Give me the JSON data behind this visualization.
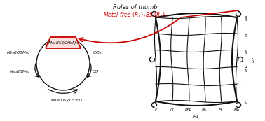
{
  "title": "Rules of thumb",
  "subtitle": "Metal-free $(R_1)_2BSi(R_2)_3$",
  "catalyst_label": "Me$_2$BSi(CH$_2$F)$_3$",
  "left_top": "Me$_2$BOBMe$_2$",
  "left_bottom": "Me$_2$BBMe$_2$",
  "right_top": "CO$_2$",
  "right_bottom": "CO",
  "bottom_label": "Me$_2$BOSi(CH$_2$F)$_3$",
  "x_axis_labels": [
    "F",
    "Cl",
    "PFP",
    "Ph",
    "Et",
    "Me"
  ],
  "x_axis_title": "R1",
  "y_axis_labels": [
    "F",
    "Cl",
    "PFP",
    "Ph",
    "Et",
    "Me"
  ],
  "y_axis_title": "R2",
  "red_color": "#cc0000",
  "black_color": "#111111",
  "bg_color": "#ffffff",
  "fig_width": 3.78,
  "fig_height": 1.73,
  "dpi": 100
}
